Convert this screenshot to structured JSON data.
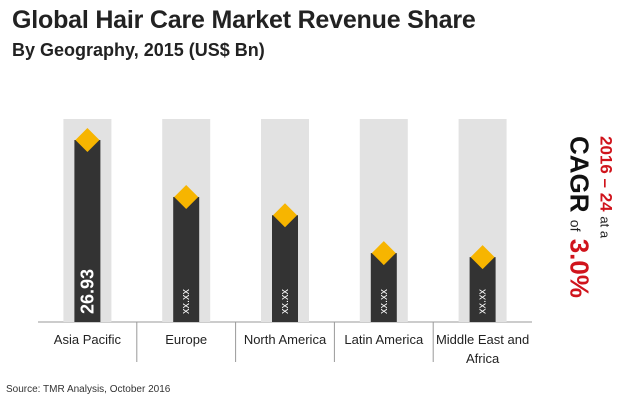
{
  "title": "Global Hair Care Market Revenue Share",
  "subtitle": "By Geography, 2015 (US$ Bn)",
  "source": "Source: TMR Analysis, October 2016",
  "cagr": {
    "period": "2016 – 24",
    "at_a": "at a",
    "label": "CAGR",
    "of": "of",
    "rate": "3.0%"
  },
  "colors": {
    "bar": "#333333",
    "background_column": "#e2e2e2",
    "marker": "#f7b500",
    "axis": "#999999",
    "accent_red": "#d0141c"
  },
  "chart_data": {
    "type": "bar",
    "title": "Global Hair Care Market Revenue Share",
    "subtitle": "By Geography, 2015 (US$ Bn)",
    "categories": [
      "Asia Pacific",
      "Europe",
      "North America",
      "Latin America",
      "Middle East and Africa"
    ],
    "category_lines": [
      [
        "Asia Pacific"
      ],
      [
        "Europe"
      ],
      [
        "North America"
      ],
      [
        "Latin America"
      ],
      [
        "Middle East and",
        "Africa"
      ]
    ],
    "values": [
      26.93,
      18.5,
      15.8,
      10.2,
      9.6
    ],
    "data_labels": [
      "26.93",
      "xx.xx",
      "xx.xx",
      "xx.xx",
      "xx.xx"
    ],
    "ymax": 30,
    "grid": false,
    "legend": "none"
  }
}
